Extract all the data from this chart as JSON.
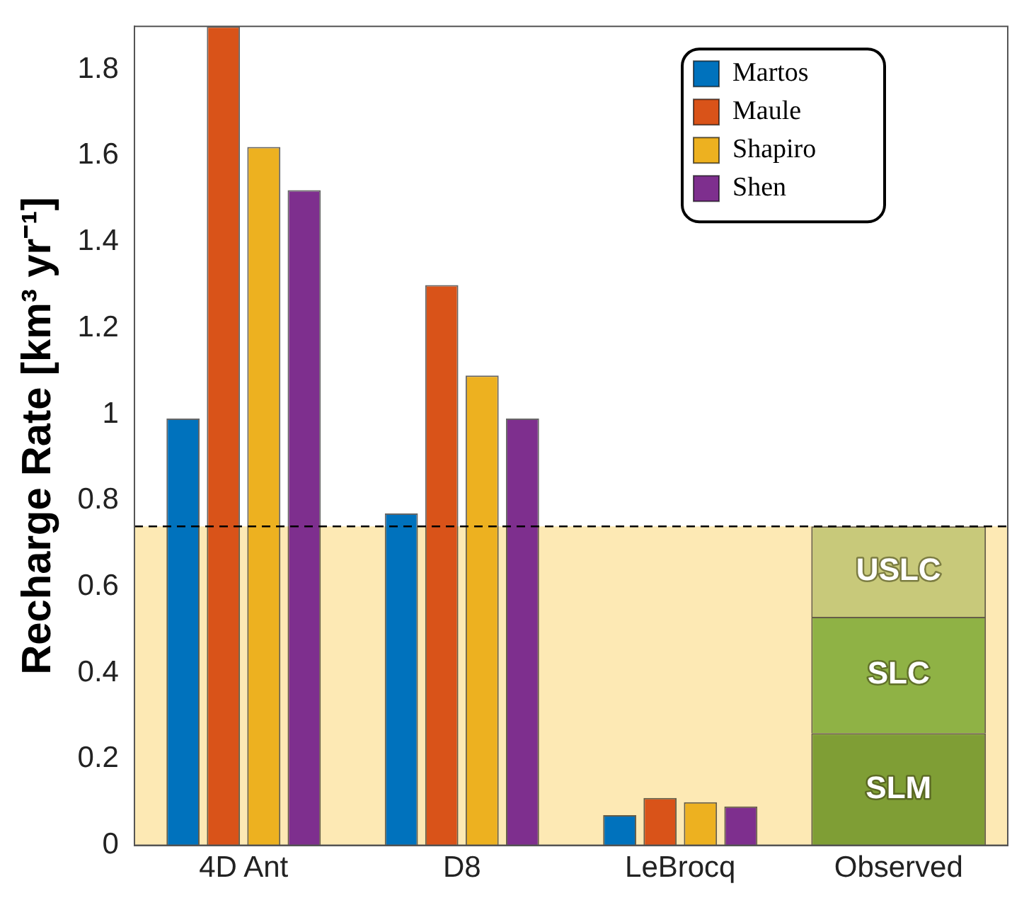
{
  "chart_data": {
    "type": "bar",
    "ylabel": "Recharge Rate [km³ yr⁻¹]",
    "categories": [
      "4D Ant",
      "D8",
      "LeBrocq",
      "Observed"
    ],
    "series": [
      {
        "name": "Martos",
        "color": "#0072bd",
        "values": [
          0.99,
          0.77,
          0.07,
          null
        ]
      },
      {
        "name": "Maule",
        "color": "#d95319",
        "values": [
          1.9,
          1.3,
          0.11,
          null
        ]
      },
      {
        "name": "Shapiro",
        "color": "#edb120",
        "values": [
          1.62,
          1.09,
          0.1,
          null
        ]
      },
      {
        "name": "Shen",
        "color": "#7e2f8e",
        "values": [
          1.52,
          0.99,
          0.09,
          null
        ]
      },
      {
        "name": "SLM",
        "color": "#7f9e35",
        "values": [
          null,
          null,
          null,
          0.26
        ],
        "base": [
          null,
          null,
          null,
          0
        ]
      },
      {
        "name": "SLC",
        "color": "#8fb245",
        "values": [
          null,
          null,
          null,
          0.27
        ],
        "base": [
          null,
          null,
          null,
          0.26
        ]
      },
      {
        "name": "USLC",
        "color": "#c8c97a",
        "values": [
          null,
          null,
          null,
          0.21
        ],
        "base": [
          null,
          null,
          null,
          0.53
        ]
      }
    ],
    "ylim": [
      0,
      1.9
    ],
    "yticks": [
      0,
      0.2,
      0.4,
      0.6,
      0.8,
      1,
      1.2,
      1.4,
      1.6,
      1.8
    ],
    "bands": [
      {
        "axis": "y",
        "from": 0,
        "to": 0.74,
        "color": "#fde9b4"
      }
    ],
    "ref_lines": [
      {
        "axis": "y",
        "value": 0.74,
        "color": "#000000",
        "line_style": "dashed"
      }
    ],
    "legend": "top right",
    "grid": false
  }
}
